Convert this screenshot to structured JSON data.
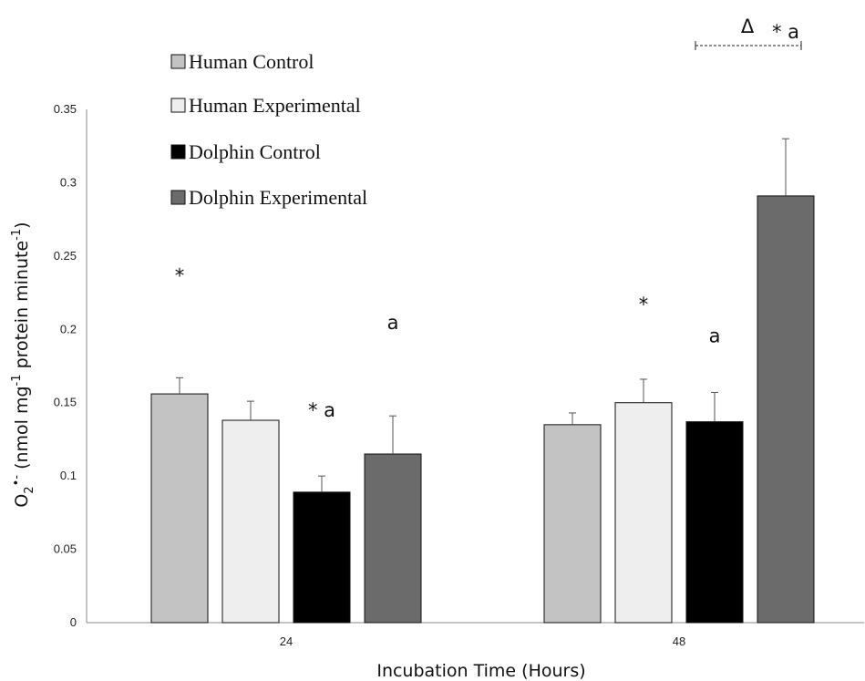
{
  "chart_data": {
    "type": "bar",
    "categories": [
      "24",
      "48"
    ],
    "series": [
      {
        "name": "Human Control",
        "color": "#c3c3c3",
        "values": [
          0.156,
          0.135
        ],
        "errors": [
          0.011,
          0.008
        ]
      },
      {
        "name": "Human Experimental",
        "color": "#eeeeee",
        "values": [
          0.138,
          0.15
        ],
        "errors": [
          0.013,
          0.016
        ]
      },
      {
        "name": "Dolphin Control",
        "color": "#000000",
        "values": [
          0.089,
          0.137
        ],
        "errors": [
          0.011,
          0.02
        ]
      },
      {
        "name": "Dolphin Experimental",
        "color": "#6b6b6b",
        "values": [
          0.115,
          0.291
        ],
        "errors": [
          0.026,
          0.039
        ]
      }
    ],
    "ylim": [
      0,
      0.35
    ],
    "yticks": [
      "0",
      "0.05",
      "0.1",
      "0.15",
      "0.2",
      "0.25",
      "0.3",
      "0.35"
    ],
    "xlabel": "Incubation Time (Hours)",
    "ylabel": {
      "o": "O",
      "sub2": "2",
      "sup_radical": "•-",
      "rest1": " (nmol mg",
      "sup_neg1": "-1",
      "rest2": " protein minute",
      "sup_neg1b": "-1",
      "close": ")"
    },
    "legend_position": "top-left",
    "grid": false,
    "annotations": {
      "g24": [
        {
          "series": 0,
          "text": "*"
        },
        {
          "series": 2,
          "text": "* a"
        },
        {
          "series": 3,
          "text": "a"
        }
      ],
      "g48": [
        {
          "series": 1,
          "text": "*"
        },
        {
          "series": 2,
          "text": "a"
        },
        {
          "series": 3,
          "text": "* a"
        }
      ],
      "delta": "Δ"
    }
  }
}
